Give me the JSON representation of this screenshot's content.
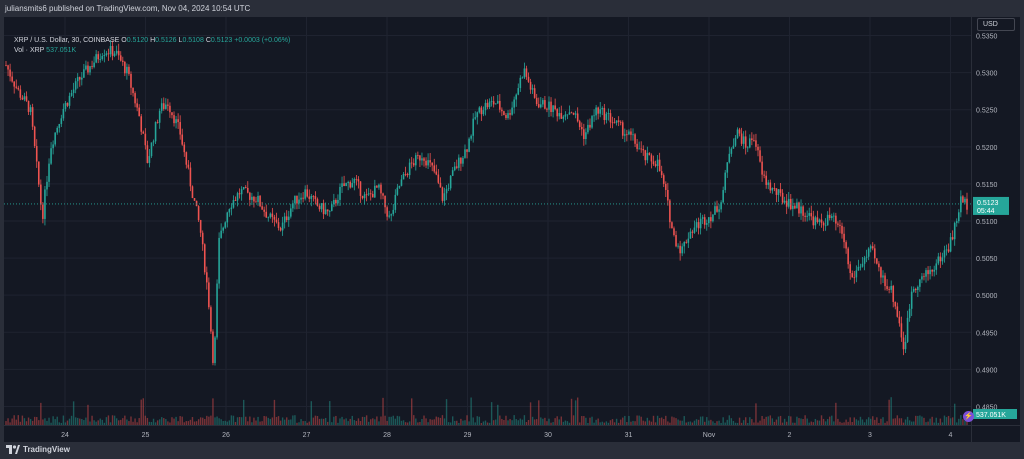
{
  "header": {
    "published": "juliansmits6 published on TradingView.com, Nov 04, 2024 10:54 UTC"
  },
  "legend": {
    "symbol": "XRP / U.S. Dollar, 30, COINBASE",
    "open_label": "O",
    "open": "0.5120",
    "high_label": "H",
    "high": "0.5126",
    "low_label": "L",
    "low": "0.5108",
    "close_label": "C",
    "close": "0.5123",
    "change": "+0.0003 (+0.06%)",
    "volume_label": "Vol · XRP",
    "volume": "537.051K"
  },
  "toolbar": {
    "currency": "USD"
  },
  "footer": {
    "brand": "TradingView"
  },
  "colors": {
    "up": "#26a69a",
    "down": "#ef5350",
    "background": "#141823",
    "grid": "#1f2330"
  },
  "chart_data": {
    "type": "candlestick",
    "interval": "30",
    "y_ticks": [
      "0.5350",
      "0.5300",
      "0.5250",
      "0.5200",
      "0.5150",
      "0.5100",
      "0.5050",
      "0.5000",
      "0.4950",
      "0.4900",
      "0.4850"
    ],
    "ylim": [
      0.4825,
      0.5375
    ],
    "x_ticks": [
      "24",
      "25",
      "26",
      "27",
      "28",
      "29",
      "30",
      "31",
      "Nov",
      "2",
      "3",
      "4"
    ],
    "last_price": "0.5123",
    "countdown": "05:44",
    "volume_label": "537.051K",
    "path": [
      [
        0,
        0.531
      ],
      [
        1.5,
        0.5275
      ],
      [
        3,
        0.525
      ],
      [
        4.5,
        0.5105
      ],
      [
        5.5,
        0.52
      ],
      [
        7,
        0.525
      ],
      [
        9,
        0.529
      ],
      [
        10.5,
        0.531
      ],
      [
        12,
        0.533
      ],
      [
        13.5,
        0.5328
      ],
      [
        15,
        0.53
      ],
      [
        16.5,
        0.524
      ],
      [
        17.5,
        0.518
      ],
      [
        19,
        0.525
      ],
      [
        20,
        0.526
      ],
      [
        21.5,
        0.522
      ],
      [
        23,
        0.514
      ],
      [
        24,
        0.509
      ],
      [
        25,
        0.5
      ],
      [
        25.7,
        0.49
      ],
      [
        26.3,
        0.507
      ],
      [
        27.5,
        0.512
      ],
      [
        29,
        0.514
      ],
      [
        31,
        0.513
      ],
      [
        32.5,
        0.5105
      ],
      [
        34,
        0.509
      ],
      [
        35.5,
        0.5125
      ],
      [
        37,
        0.514
      ],
      [
        38.5,
        0.512
      ],
      [
        40,
        0.511
      ],
      [
        41.5,
        0.5145
      ],
      [
        43,
        0.5155
      ],
      [
        44.5,
        0.513
      ],
      [
        46,
        0.5145
      ],
      [
        47.5,
        0.51
      ],
      [
        48.5,
        0.5145
      ],
      [
        50,
        0.5175
      ],
      [
        51.5,
        0.519
      ],
      [
        53,
        0.5165
      ],
      [
        54,
        0.513
      ],
      [
        55.5,
        0.517
      ],
      [
        57,
        0.52
      ],
      [
        58,
        0.524
      ],
      [
        59,
        0.5255
      ],
      [
        60.5,
        0.526
      ],
      [
        62,
        0.524
      ],
      [
        63,
        0.527
      ],
      [
        64,
        0.5305
      ],
      [
        65.5,
        0.526
      ],
      [
        67,
        0.5255
      ],
      [
        68.5,
        0.5245
      ],
      [
        70,
        0.525
      ],
      [
        71.5,
        0.5215
      ],
      [
        73,
        0.525
      ],
      [
        74.5,
        0.524
      ],
      [
        76,
        0.5225
      ],
      [
        77.5,
        0.521
      ],
      [
        79,
        0.5185
      ],
      [
        80.5,
        0.518
      ],
      [
        81.5,
        0.514
      ],
      [
        82.5,
        0.508
      ],
      [
        83.5,
        0.506
      ],
      [
        84.5,
        0.5085
      ],
      [
        86,
        0.51
      ],
      [
        87.5,
        0.511
      ],
      [
        88.5,
        0.513
      ],
      [
        89.5,
        0.52
      ],
      [
        90.5,
        0.522
      ],
      [
        91.5,
        0.52
      ],
      [
        92.5,
        0.5215
      ],
      [
        93.5,
        0.516
      ],
      [
        94.5,
        0.5145
      ],
      [
        96,
        0.513
      ],
      [
        97.5,
        0.512
      ],
      [
        99,
        0.511
      ],
      [
        100.5,
        0.5095
      ],
      [
        102,
        0.5105
      ],
      [
        103.5,
        0.508
      ],
      [
        104.5,
        0.502
      ],
      [
        105.5,
        0.504
      ],
      [
        107,
        0.506
      ],
      [
        108,
        0.503
      ],
      [
        109.5,
        0.5005
      ],
      [
        110.5,
        0.496
      ],
      [
        111,
        0.4925
      ],
      [
        112,
        0.501
      ],
      [
        113,
        0.502
      ],
      [
        114.5,
        0.5035
      ],
      [
        115.5,
        0.505
      ],
      [
        116.5,
        0.5065
      ],
      [
        117,
        0.508
      ],
      [
        117.5,
        0.51
      ],
      [
        118,
        0.5128
      ],
      [
        118.8,
        0.5123
      ]
    ]
  }
}
